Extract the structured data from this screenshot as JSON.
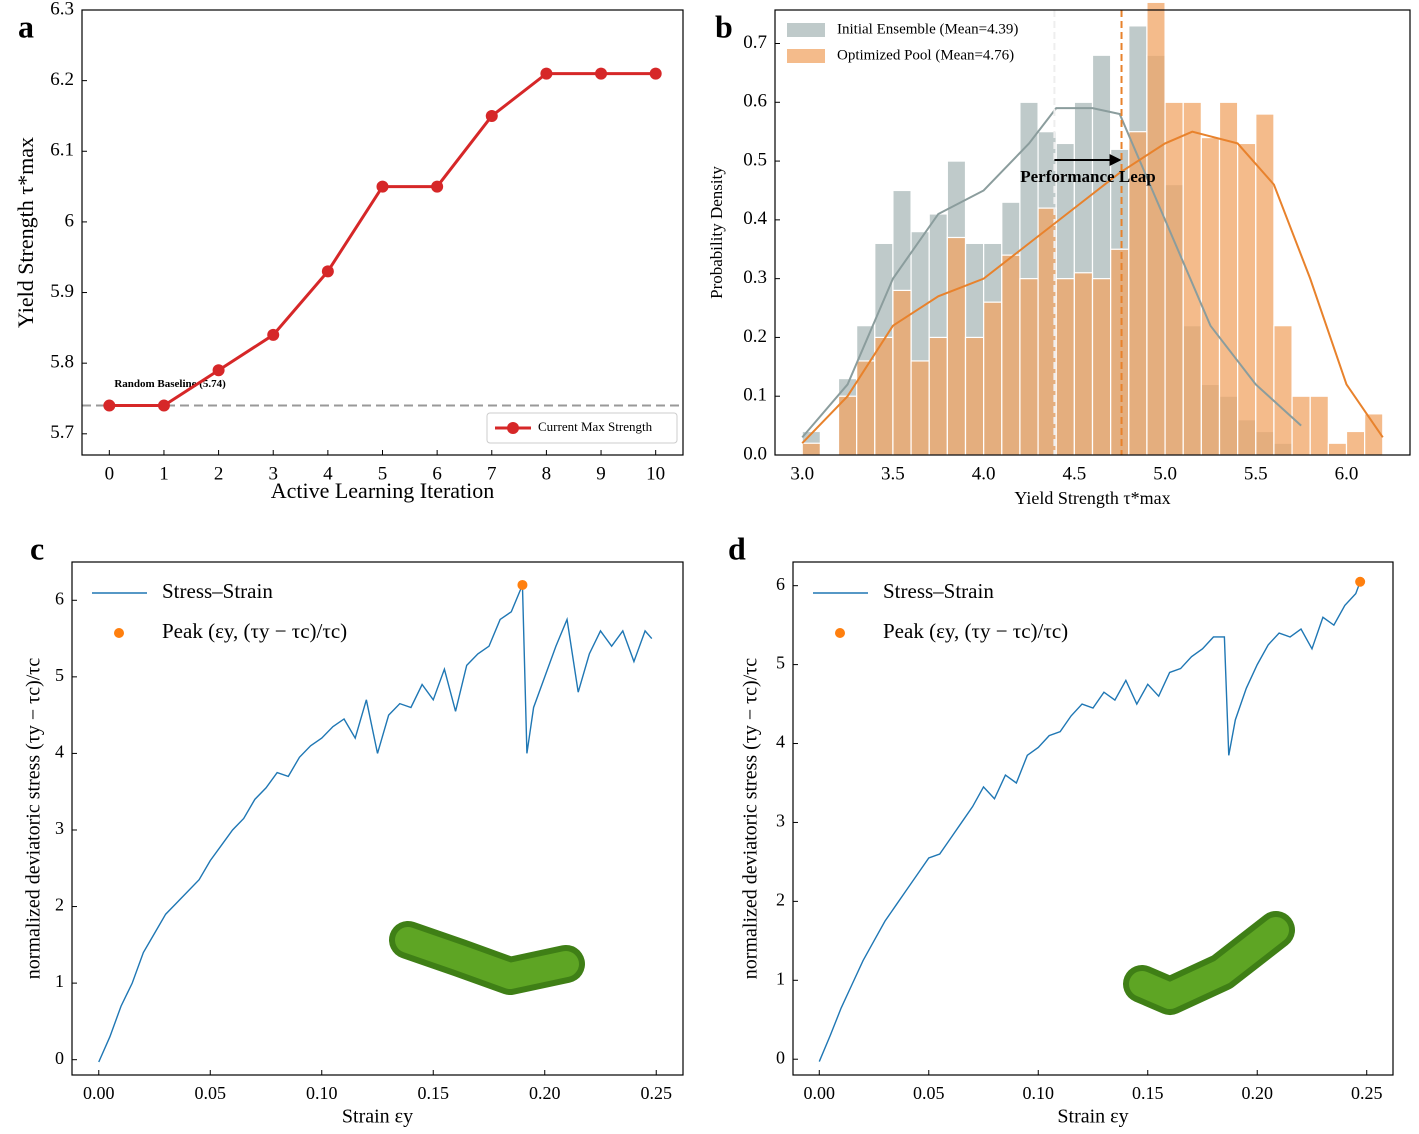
{
  "chart_data": [
    {
      "type": "line",
      "panel": "a",
      "x_label": "Active Learning Iteration",
      "y_label": "Yield Strength τ*max",
      "x": [
        0,
        1,
        2,
        3,
        4,
        5,
        6,
        7,
        8,
        9,
        10
      ],
      "xlim": [
        -0.5,
        10.5
      ],
      "xticks": [
        0,
        1,
        2,
        3,
        4,
        5,
        6,
        7,
        8,
        9,
        10
      ],
      "ylim": [
        5.67,
        6.3
      ],
      "yticks": [
        5.7,
        5.8,
        5.9,
        6.0,
        6.1,
        6.2,
        6.3
      ],
      "series": [
        {
          "name": "Current Max Strength",
          "color": "#d62728",
          "values": [
            5.74,
            5.74,
            5.79,
            5.84,
            5.93,
            6.05,
            6.05,
            6.15,
            6.21,
            6.21,
            6.21
          ]
        }
      ],
      "baseline": {
        "label": "Random Baseline (5.74)",
        "value": 5.74
      },
      "legend": "lower right"
    },
    {
      "type": "histogram",
      "panel": "b",
      "x_label": "Yield Strength τ*max",
      "y_label": "Probability Density",
      "xlim": [
        2.85,
        6.35
      ],
      "xticks": [
        {
          "value": 3,
          "label": "3.0"
        },
        3.5,
        {
          "value": 4,
          "label": "4.0"
        },
        4.5,
        {
          "value": 5,
          "label": "5.0"
        },
        5.5,
        {
          "value": 6,
          "label": "6.0"
        }
      ],
      "ylim": [
        0,
        0.757
      ],
      "yticks": [
        {
          "value": 0,
          "label": "0.0"
        },
        0.1,
        0.2,
        0.3,
        0.4,
        0.5,
        0.6,
        0.7
      ],
      "series": [
        {
          "name": "Initial Ensemble (Mean=4.39)",
          "color": "#a9b8b8",
          "line_color": "#8b9d9d",
          "mean": 4.39,
          "bins": [
            3.0,
            3.1,
            3.2,
            3.3,
            3.4,
            3.5,
            3.6,
            3.7,
            3.8,
            3.9,
            4.0,
            4.1,
            4.2,
            4.3,
            4.4,
            4.5,
            4.6,
            4.7,
            4.8,
            4.9,
            5.0,
            5.1,
            5.2,
            5.3,
            5.4,
            5.5,
            5.6,
            5.7
          ],
          "values": [
            0.04,
            0,
            0.13,
            0.22,
            0.36,
            0.45,
            0.38,
            0.41,
            0.5,
            0.36,
            0.36,
            0.43,
            0.6,
            0.55,
            0.53,
            0.6,
            0.68,
            0.52,
            0.73,
            0.68,
            0.46,
            0.22,
            0.12,
            0.1,
            0.06,
            0.04,
            0.02
          ],
          "kde_x": [
            3.0,
            3.25,
            3.5,
            3.75,
            4.0,
            4.25,
            4.4,
            4.6,
            4.75,
            5.0,
            5.25,
            5.5,
            5.75
          ],
          "kde_values": [
            0.03,
            0.12,
            0.3,
            0.41,
            0.45,
            0.53,
            0.59,
            0.59,
            0.58,
            0.4,
            0.22,
            0.12,
            0.05
          ]
        },
        {
          "name": "Optimized Pool (Mean=4.76)",
          "color": "#f0a464",
          "line_color": "#e8822c",
          "mean": 4.76,
          "bins": [
            3.0,
            3.1,
            3.2,
            3.3,
            3.4,
            3.5,
            3.6,
            3.7,
            3.8,
            3.9,
            4.0,
            4.1,
            4.2,
            4.3,
            4.4,
            4.5,
            4.6,
            4.7,
            4.8,
            4.9,
            5.0,
            5.1,
            5.2,
            5.3,
            5.4,
            5.5,
            5.6,
            5.7,
            5.8,
            5.9,
            6.0,
            6.1,
            6.2
          ],
          "values": [
            0.02,
            0,
            0.1,
            0.16,
            0.2,
            0.28,
            0.16,
            0.2,
            0.37,
            0.2,
            0.26,
            0.34,
            0.3,
            0.42,
            0.3,
            0.31,
            0.3,
            0.35,
            0.55,
            0.77,
            0.6,
            0.6,
            0.54,
            0.6,
            0.53,
            0.58,
            0.22,
            0.1,
            0.1,
            0.02,
            0.04,
            0.07
          ],
          "kde_x": [
            3.0,
            3.25,
            3.5,
            3.75,
            4.0,
            4.25,
            4.5,
            4.75,
            5.0,
            5.15,
            5.4,
            5.6,
            5.8,
            6.0,
            6.2
          ],
          "kde_values": [
            0.02,
            0.1,
            0.22,
            0.27,
            0.3,
            0.36,
            0.42,
            0.48,
            0.53,
            0.55,
            0.53,
            0.46,
            0.3,
            0.12,
            0.03
          ]
        }
      ],
      "annotation": "Performance Leap",
      "legend": "upper left"
    },
    {
      "type": "line",
      "panel": "c",
      "x_label": "Strain εy",
      "y_label": "normalized deviatoric stress (τy − τc)/τc",
      "xlim": [
        -0.012,
        0.262
      ],
      "xticks": [
        {
          "value": 0,
          "label": "0.00"
        },
        0.05,
        {
          "value": 0.1,
          "label": "0.10"
        },
        0.15,
        {
          "value": 0.2,
          "label": "0.20"
        },
        0.25
      ],
      "ylim": [
        -0.2,
        6.5
      ],
      "yticks": [
        0,
        1,
        2,
        3,
        4,
        5,
        6
      ],
      "series": [
        {
          "name": "Stress–Strain",
          "color": "#1f77b4",
          "x": [
            0,
            0.005,
            0.01,
            0.015,
            0.02,
            0.025,
            0.03,
            0.035,
            0.04,
            0.045,
            0.05,
            0.055,
            0.06,
            0.065,
            0.07,
            0.075,
            0.08,
            0.085,
            0.09,
            0.095,
            0.1,
            0.105,
            0.11,
            0.115,
            0.12,
            0.125,
            0.13,
            0.135,
            0.14,
            0.145,
            0.15,
            0.155,
            0.16,
            0.165,
            0.17,
            0.175,
            0.18,
            0.185,
            0.19,
            0.192,
            0.195,
            0.2,
            0.205,
            0.21,
            0.215,
            0.22,
            0.225,
            0.23,
            0.235,
            0.24,
            0.245,
            0.248
          ],
          "values": [
            -0.03,
            0.3,
            0.7,
            1.0,
            1.4,
            1.65,
            1.9,
            2.05,
            2.2,
            2.35,
            2.6,
            2.8,
            3.0,
            3.15,
            3.4,
            3.55,
            3.75,
            3.7,
            3.95,
            4.1,
            4.2,
            4.35,
            4.45,
            4.2,
            4.7,
            4.0,
            4.5,
            4.65,
            4.6,
            4.9,
            4.7,
            5.1,
            4.55,
            5.15,
            5.3,
            5.4,
            5.75,
            5.85,
            6.2,
            4.0,
            4.6,
            5.0,
            5.4,
            5.75,
            4.8,
            5.3,
            5.6,
            5.4,
            5.6,
            5.2,
            5.6,
            5.5
          ]
        }
      ],
      "peak": {
        "name": "Peak (εy, (τy − τc)/τc)",
        "color": "#ff7f0e",
        "x": 0.19,
        "value": 6.2
      },
      "legend": "upper left"
    },
    {
      "type": "line",
      "panel": "d",
      "x_label": "Strain εy",
      "y_label": "normalized deviatoric stress (τy − τc)/τc",
      "xlim": [
        -0.012,
        0.262
      ],
      "xticks": [
        {
          "value": 0,
          "label": "0.00"
        },
        0.05,
        {
          "value": 0.1,
          "label": "0.10"
        },
        0.15,
        {
          "value": 0.2,
          "label": "0.20"
        },
        0.25
      ],
      "ylim": [
        -0.2,
        6.3
      ],
      "yticks": [
        0,
        1,
        2,
        3,
        4,
        5,
        6
      ],
      "series": [
        {
          "name": "Stress–Strain",
          "color": "#1f77b4",
          "x": [
            0,
            0.005,
            0.01,
            0.015,
            0.02,
            0.025,
            0.03,
            0.035,
            0.04,
            0.045,
            0.05,
            0.055,
            0.06,
            0.065,
            0.07,
            0.075,
            0.08,
            0.085,
            0.09,
            0.095,
            0.1,
            0.105,
            0.11,
            0.115,
            0.12,
            0.125,
            0.13,
            0.135,
            0.14,
            0.145,
            0.15,
            0.155,
            0.16,
            0.165,
            0.17,
            0.175,
            0.18,
            0.185,
            0.187,
            0.19,
            0.195,
            0.2,
            0.205,
            0.21,
            0.215,
            0.22,
            0.225,
            0.23,
            0.235,
            0.24,
            0.245,
            0.247
          ],
          "values": [
            -0.03,
            0.3,
            0.65,
            0.95,
            1.25,
            1.5,
            1.75,
            1.95,
            2.15,
            2.35,
            2.55,
            2.6,
            2.8,
            3.0,
            3.2,
            3.45,
            3.3,
            3.6,
            3.5,
            3.85,
            3.95,
            4.1,
            4.15,
            4.35,
            4.5,
            4.45,
            4.65,
            4.55,
            4.8,
            4.5,
            4.75,
            4.6,
            4.9,
            4.95,
            5.1,
            5.2,
            5.35,
            5.35,
            3.85,
            4.3,
            4.7,
            5.0,
            5.25,
            5.4,
            5.35,
            5.45,
            5.2,
            5.6,
            5.5,
            5.75,
            5.9,
            6.05
          ]
        }
      ],
      "peak": {
        "name": "Peak (εy, (τy − τc)/τc)",
        "color": "#ff7f0e",
        "x": 0.247,
        "value": 6.05
      },
      "legend": "upper left"
    }
  ]
}
